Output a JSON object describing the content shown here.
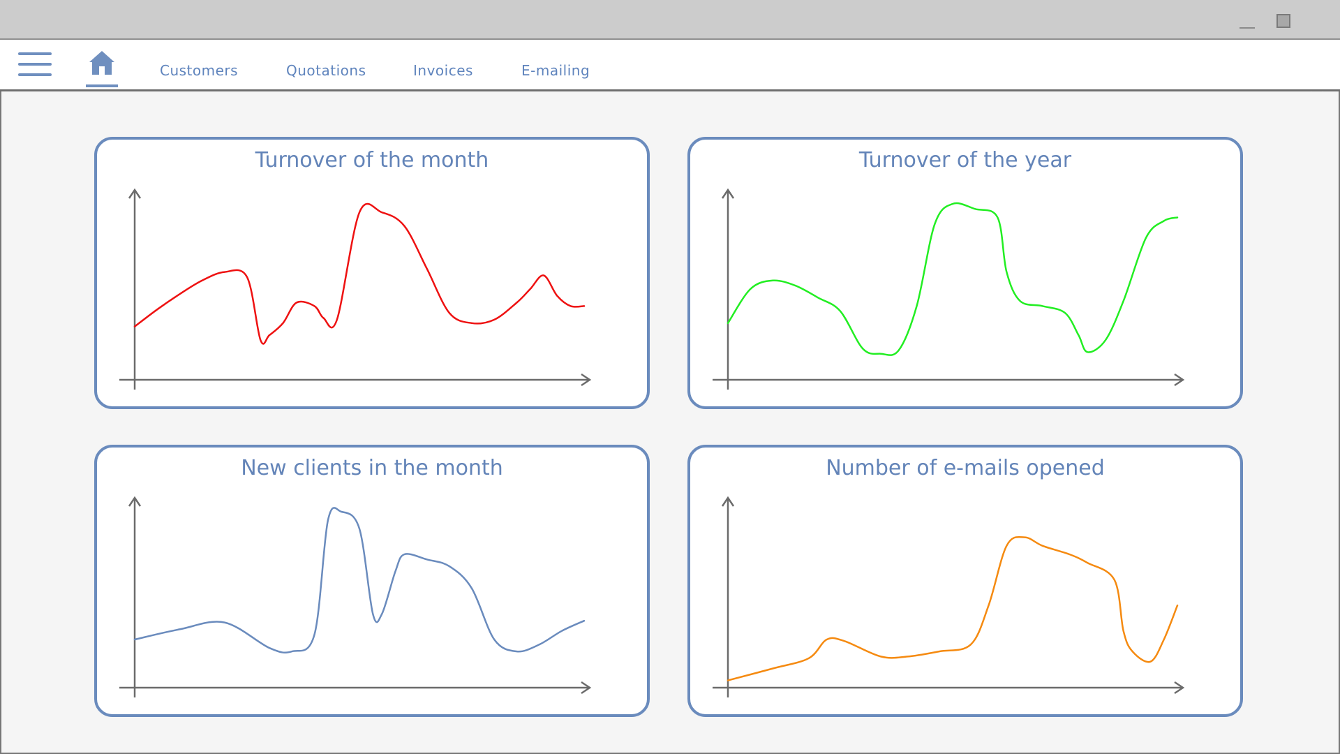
{
  "nav": {
    "tabs": [
      {
        "label": "Customers"
      },
      {
        "label": "Quotations"
      },
      {
        "label": "Invoices"
      },
      {
        "label": "E-mailing"
      }
    ],
    "home_icon": "home-icon",
    "menu_icon": "hamburger-menu-icon",
    "close_icon": "close-icon",
    "accent_color": "#6f8fbf"
  },
  "panels": [
    {
      "title": "Turnover of the month",
      "color": "#ee1111"
    },
    {
      "title": "Turnover of the year",
      "color": "#22ee22"
    },
    {
      "title": "New clients in the month",
      "color": "#6a8bbd"
    },
    {
      "title": "Number of e-mails opened",
      "color": "#f58a10"
    }
  ],
  "chart_data": [
    {
      "type": "line",
      "title": "Turnover of the month",
      "xlabel": "",
      "ylabel": "",
      "grid": false,
      "x": [
        0,
        5,
        10,
        15,
        20,
        25,
        28,
        30,
        33,
        36,
        40,
        42,
        45,
        50,
        55,
        60,
        65,
        70,
        75,
        80,
        85,
        88,
        91,
        94,
        97,
        100
      ],
      "series": [
        {
          "values": [
            28,
            38,
            47,
            55,
            60,
            57,
            20,
            23,
            30,
            42,
            40,
            33,
            32,
            95,
            95,
            87,
            62,
            36,
            30,
            32,
            42,
            50,
            58,
            46,
            40,
            40
          ]
        }
      ]
    },
    {
      "type": "line",
      "title": "Turnover of the year",
      "xlabel": "",
      "ylabel": "",
      "grid": false,
      "x": [
        0,
        5,
        10,
        15,
        20,
        25,
        30,
        34,
        38,
        42,
        46,
        50,
        55,
        60,
        62,
        65,
        70,
        75,
        78,
        80,
        84,
        88,
        93,
        97,
        100
      ],
      "series": [
        {
          "values": [
            30,
            50,
            55,
            52,
            45,
            37,
            15,
            12,
            14,
            40,
            88,
            100,
            97,
            92,
            60,
            43,
            40,
            36,
            23,
            13,
            20,
            43,
            80,
            90,
            92
          ]
        }
      ]
    },
    {
      "type": "line",
      "title": "New clients in the month",
      "xlabel": "",
      "ylabel": "",
      "grid": false,
      "x": [
        0,
        10,
        20,
        30,
        35,
        40,
        43,
        46,
        50,
        53,
        55,
        58,
        60,
        65,
        70,
        75,
        80,
        85,
        90,
        95,
        100
      ],
      "series": [
        {
          "values": [
            25,
            31,
            35,
            20,
            18,
            28,
            95,
            100,
            90,
            40,
            40,
            65,
            75,
            72,
            68,
            55,
            25,
            18,
            22,
            30,
            36
          ]
        }
      ]
    },
    {
      "type": "line",
      "title": "Number of e-mails opened",
      "xlabel": "",
      "ylabel": "",
      "grid": false,
      "x": [
        0,
        10,
        18,
        22,
        26,
        34,
        40,
        47,
        54,
        58,
        62,
        66,
        70,
        76,
        80,
        86,
        88,
        90,
        94,
        97,
        100
      ],
      "series": [
        {
          "values": [
            1,
            8,
            14,
            25,
            24,
            15,
            15,
            18,
            22,
            45,
            80,
            85,
            80,
            75,
            70,
            60,
            30,
            18,
            12,
            25,
            45
          ]
        }
      ]
    }
  ]
}
